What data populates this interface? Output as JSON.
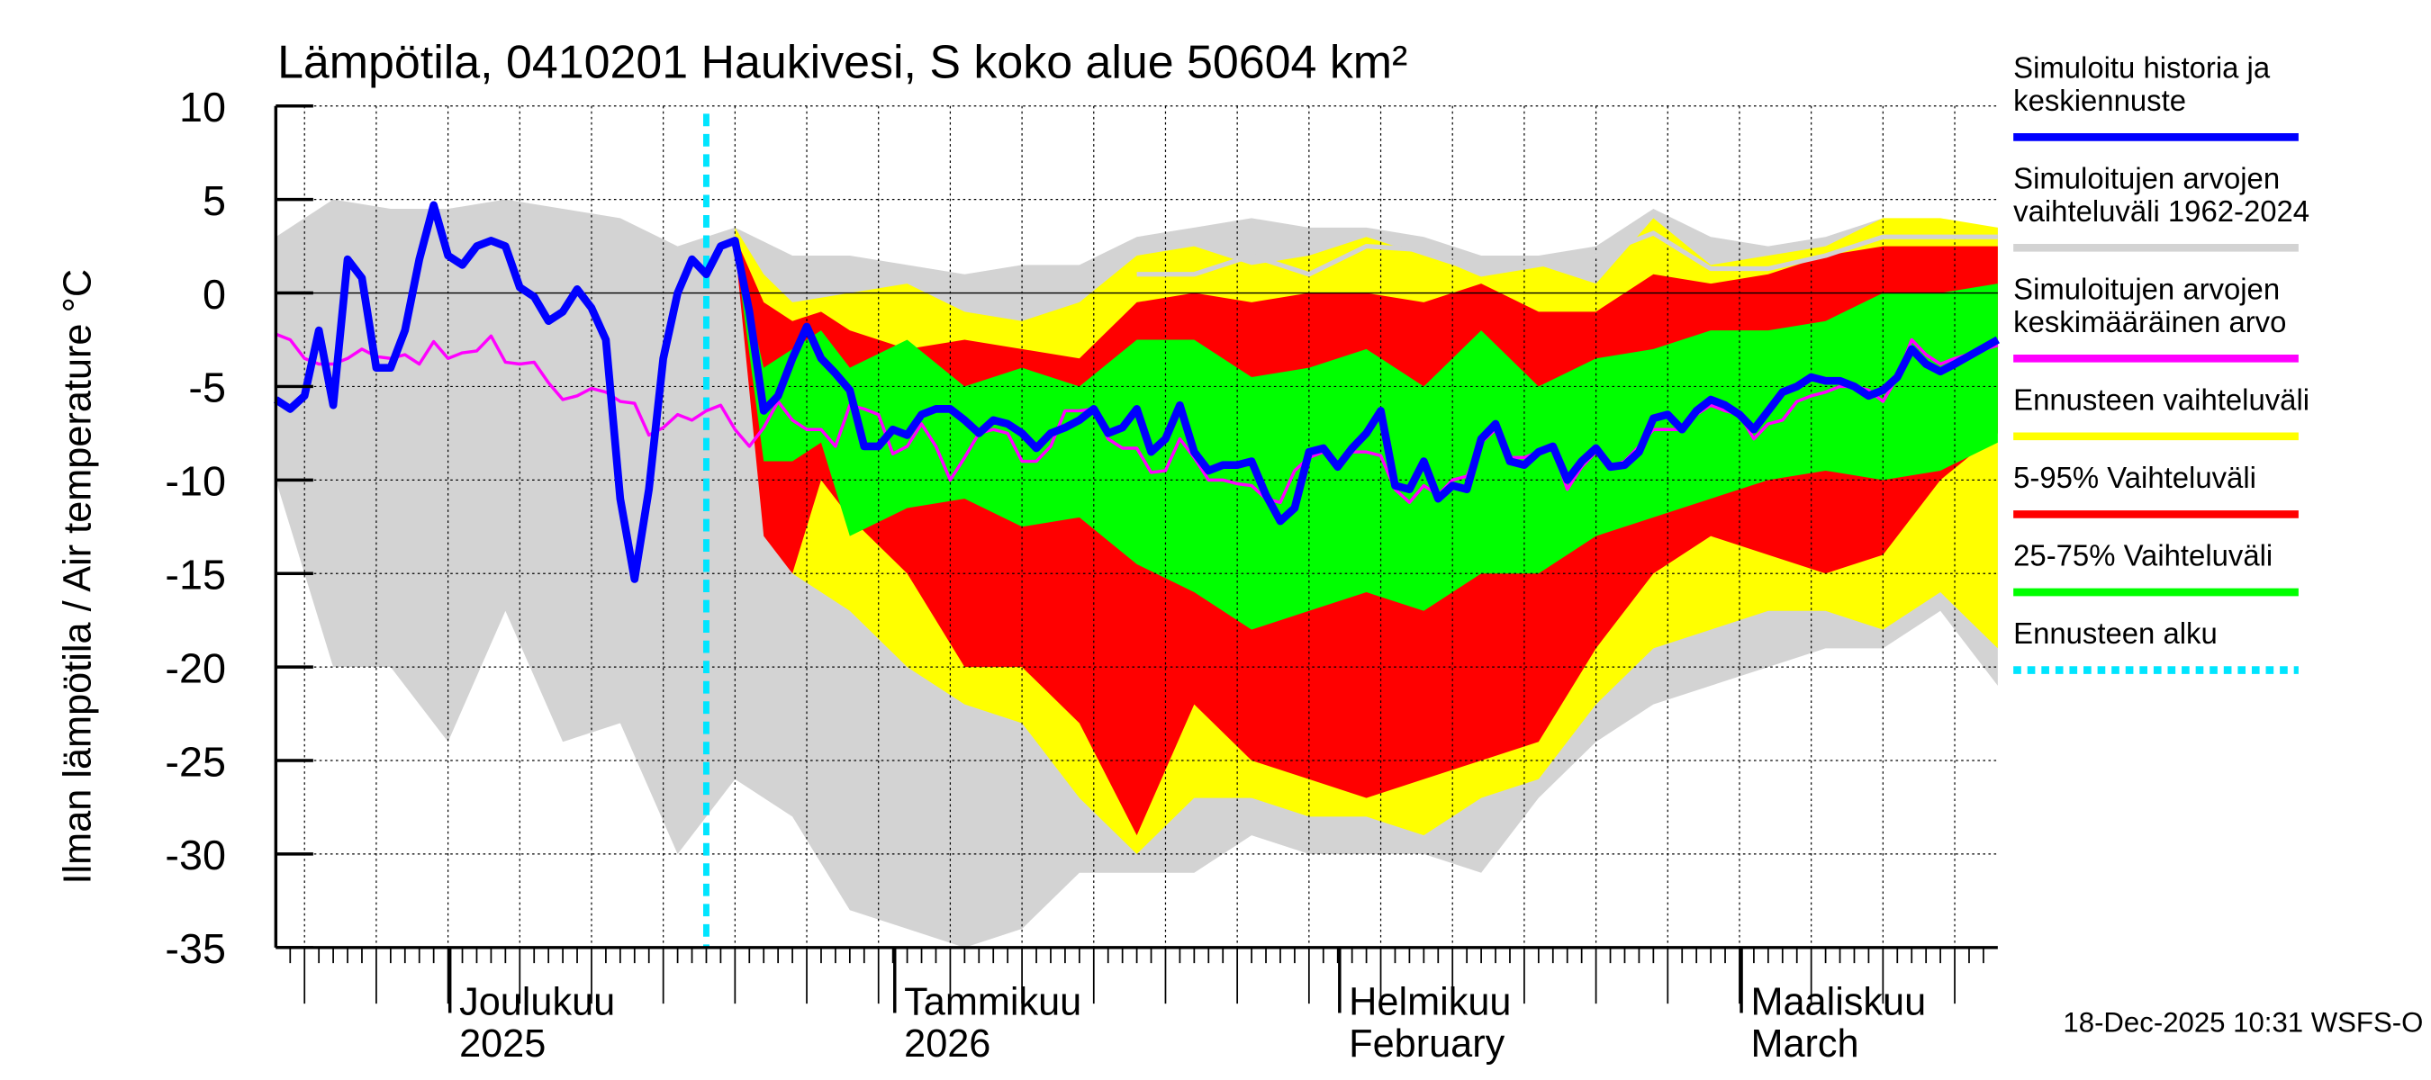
{
  "chart_data": {
    "type": "area",
    "title": "Lämpötila, 0410201 Haukivesi, S koko alue 50604 km²",
    "ylabel": "Ilman lämpötila / Air temperature   °C",
    "ylim": [
      -35,
      10
    ],
    "yticks": [
      10,
      5,
      0,
      -5,
      -10,
      -15,
      -20,
      -25,
      -30,
      -35
    ],
    "ytick_labels": [
      "10",
      "5",
      "0",
      "-5",
      "-10",
      "-15",
      "-20",
      "-25",
      "-30",
      "-35"
    ],
    "x_unit": "days since 18-Nov-2025",
    "xlim": [
      0,
      120
    ],
    "forecast_start_day": 30,
    "month_labels": [
      {
        "day": 13,
        "line1": "Joulukuu",
        "line2": "2025"
      },
      {
        "day": 44,
        "line1": "Tammikuu",
        "line2": "2026"
      },
      {
        "day": 75,
        "line1": "Helmikuu",
        "line2": "February"
      },
      {
        "day": 103,
        "line1": "Maaliskuu",
        "line2": "March"
      }
    ],
    "timestamp": "18-Dec-2025 10:31 WSFS-O",
    "legend": [
      {
        "label1": "Simuloitu historia ja",
        "label2": "keskiennuste",
        "color": "#0000ff",
        "style": "solid"
      },
      {
        "label1": "Simuloitujen arvojen",
        "label2": "vaihteluväli 1962-2024",
        "color": "#d3d3d3",
        "style": "solid"
      },
      {
        "label1": "Simuloitujen arvojen",
        "label2": "keskimääräinen arvo",
        "color": "#ff00ff",
        "style": "solid"
      },
      {
        "label1": "Ennusteen vaihteluväli",
        "label2": "",
        "color": "#ffff00",
        "style": "solid"
      },
      {
        "label1": "5-95% Vaihteluväli",
        "label2": "",
        "color": "#ff0000",
        "style": "solid"
      },
      {
        "label1": "25-75% Vaihteluväli",
        "label2": "",
        "color": "#00ff00",
        "style": "solid"
      },
      {
        "label1": "Ennusteen alku",
        "label2": "",
        "color": "#00e5ff",
        "style": "dashed"
      }
    ],
    "bands": [
      {
        "name": "Simuloitujen arvojen vaihteluväli 1962-2024",
        "color": "#d3d3d3",
        "x": [
          0,
          4,
          8,
          12,
          16,
          20,
          24,
          28,
          32,
          36,
          40,
          44,
          48,
          52,
          56,
          60,
          64,
          68,
          72,
          76,
          80,
          84,
          88,
          92,
          96,
          100,
          104,
          108,
          112,
          116,
          120
        ],
        "upper": [
          3,
          5,
          4.5,
          4.5,
          5,
          4.5,
          4,
          2.5,
          3.5,
          2,
          2,
          1.5,
          1,
          1.5,
          1.5,
          3,
          3.5,
          4,
          3.5,
          3.5,
          3,
          2,
          2,
          2.5,
          4.5,
          3,
          2.5,
          3,
          4,
          3.5,
          3.5
        ],
        "lower": [
          -10,
          -20,
          -20,
          -24,
          -17,
          -24,
          -23,
          -30,
          -26,
          -28,
          -33,
          -34,
          -35,
          -34,
          -31,
          -31,
          -31,
          -29,
          -30,
          -30,
          -30,
          -31,
          -27,
          -24,
          -22,
          -21,
          -20,
          -19,
          -19,
          -17,
          -21
        ]
      },
      {
        "name": "Ennusteen vaihteluväli",
        "color": "#ffff00",
        "x": [
          32,
          34,
          36,
          40,
          44,
          48,
          52,
          56,
          60,
          64,
          68,
          72,
          76,
          80,
          84,
          88,
          92,
          96,
          100,
          104,
          108,
          112,
          116,
          120
        ],
        "upper": [
          3.5,
          1,
          -0.5,
          0,
          0.5,
          -1,
          -1.5,
          -0.5,
          2,
          2.5,
          1.5,
          2,
          3,
          2,
          1,
          1.5,
          0.5,
          4,
          1.5,
          2,
          2.5,
          4,
          4,
          3.5
        ],
        "lower": [
          2.5,
          -12,
          -15,
          -17,
          -20,
          -22,
          -23,
          -27,
          -30,
          -27,
          -27,
          -28,
          -28,
          -29,
          -27,
          -26,
          -22,
          -19,
          -18,
          -17,
          -17,
          -18,
          -16,
          -19
        ]
      },
      {
        "name": "5-95% Vaihteluväli",
        "color": "#ff0000",
        "x": [
          32,
          34,
          36,
          38,
          40,
          44,
          48,
          52,
          56,
          60,
          64,
          68,
          72,
          76,
          80,
          84,
          88,
          92,
          96,
          100,
          104,
          108,
          112,
          116,
          120
        ],
        "upper": [
          3,
          -0.5,
          -1.5,
          -1,
          -2,
          -3,
          -2.5,
          -3,
          -3.5,
          -0.5,
          0,
          -0.5,
          0,
          0,
          -0.5,
          0.5,
          -1,
          -1,
          1,
          0.5,
          1,
          2,
          2.5,
          2.5,
          2.5
        ],
        "lower": [
          2.5,
          -13,
          -15,
          -10,
          -12,
          -15,
          -20,
          -20,
          -23,
          -29,
          -22,
          -25,
          -26,
          -27,
          -26,
          -25,
          -24,
          -19,
          -15,
          -13,
          -14,
          -15,
          -14,
          -10,
          -7.5
        ]
      },
      {
        "name": "25-75% Vaihteluväli",
        "color": "#00ff00",
        "x": [
          32,
          34,
          36,
          38,
          40,
          44,
          48,
          52,
          56,
          60,
          64,
          68,
          72,
          76,
          80,
          84,
          88,
          92,
          96,
          100,
          104,
          108,
          112,
          116,
          120
        ],
        "upper": [
          2.5,
          -4,
          -3,
          -2,
          -4,
          -2.5,
          -5,
          -4,
          -5,
          -2.5,
          -2.5,
          -4.5,
          -4,
          -3,
          -5,
          -2,
          -5,
          -3.5,
          -3,
          -2,
          -2,
          -1.5,
          0,
          0,
          0.5
        ],
        "lower": [
          2.5,
          -9,
          -9,
          -8,
          -13,
          -11.5,
          -11,
          -12.5,
          -12,
          -14.5,
          -16,
          -18,
          -17,
          -16,
          -17,
          -15,
          -15,
          -13,
          -12,
          -11,
          -10,
          -9.5,
          -10,
          -9.5,
          -8
        ]
      }
    ],
    "series": [
      {
        "name": "Simuloitujen arvojen vaihteluväli (gray line)",
        "color": "#d3d3d3",
        "x": [
          60,
          64,
          68,
          72,
          76,
          80,
          84,
          88,
          92,
          96,
          100,
          104,
          108,
          112,
          116,
          120
        ],
        "y": [
          1,
          1,
          2,
          1,
          2.5,
          2.3,
          1,
          1.5,
          2,
          3.2,
          1.3,
          1.3,
          2,
          3,
          3,
          3
        ]
      },
      {
        "name": "Simuloitujen arvojen keskimääräinen arvo",
        "color": "#ff00ff",
        "x": [
          0,
          1,
          2,
          3,
          4,
          5,
          6,
          7,
          8,
          9,
          10,
          11,
          12,
          13,
          14,
          15,
          16,
          17,
          18,
          19,
          20,
          21,
          22,
          23,
          24,
          25,
          26,
          27,
          28,
          29,
          30,
          31,
          32,
          33,
          34,
          35,
          36,
          37,
          38,
          39,
          40,
          41,
          42,
          43,
          44,
          45,
          46,
          47,
          48,
          49,
          50,
          51,
          52,
          53,
          54,
          55,
          56,
          57,
          58,
          59,
          60,
          61,
          62,
          63,
          64,
          65,
          66,
          67,
          68,
          69,
          70,
          71,
          72,
          73,
          74,
          75,
          76,
          77,
          78,
          79,
          80,
          81,
          82,
          83,
          84,
          85,
          86,
          87,
          88,
          89,
          90,
          91,
          92,
          93,
          94,
          95,
          96,
          97,
          98,
          99,
          100,
          101,
          102,
          103,
          104,
          105,
          106,
          107,
          108,
          109,
          110,
          111,
          112,
          113,
          114,
          115,
          116,
          117,
          120
        ],
        "y": [
          -2.2,
          -2.5,
          -3.5,
          -3.8,
          -3.8,
          -3.5,
          -3,
          -3.4,
          -3.5,
          -3.3,
          -3.8,
          -2.6,
          -3.5,
          -3.2,
          -3.1,
          -2.3,
          -3.7,
          -3.8,
          -3.7,
          -4.8,
          -5.7,
          -5.5,
          -5.1,
          -5.3,
          -5.8,
          -5.9,
          -7.6,
          -7.2,
          -6.5,
          -6.8,
          -6.3,
          -6,
          -7.3,
          -8.2,
          -7.2,
          -5.8,
          -6.8,
          -7.3,
          -7.3,
          -8.2,
          -6,
          -6.2,
          -6.5,
          -8.6,
          -8.2,
          -7,
          -8.2,
          -10,
          -8.8,
          -7.5,
          -7.3,
          -7.5,
          -9,
          -9,
          -8.2,
          -6.3,
          -6.3,
          -6.2,
          -7.8,
          -8.3,
          -8.3,
          -9.6,
          -9.5,
          -7.8,
          -8.8,
          -10,
          -10,
          -10.2,
          -10.3,
          -11,
          -11.2,
          -9.5,
          -8.8,
          -8.5,
          -9.2,
          -8.5,
          -8.5,
          -8.7,
          -10.5,
          -11.2,
          -10.3,
          -10.8,
          -10,
          -9.8,
          -8,
          -7.3,
          -8.8,
          -8.8,
          -8.5,
          -8.3,
          -10.5,
          -9.3,
          -8.5,
          -9.3,
          -9,
          -8.2,
          -7.3,
          -7.3,
          -7.3,
          -6.5,
          -6,
          -6.3,
          -6.5,
          -7.8,
          -7,
          -6.8,
          -5.8,
          -5.5,
          -5.3,
          -5,
          -5,
          -5.2,
          -5.8,
          -4.5,
          -2.5,
          -3.3,
          -3.8,
          -3.5,
          -2.8
        ]
      },
      {
        "name": "Simuloitu historia ja keskiennuste",
        "color": "#0000ff",
        "x": [
          0,
          1,
          2,
          3,
          4,
          5,
          6,
          7,
          8,
          9,
          10,
          11,
          12,
          13,
          14,
          15,
          16,
          17,
          18,
          19,
          20,
          21,
          22,
          23,
          24,
          25,
          26,
          27,
          28,
          29,
          30,
          31,
          32,
          33,
          34,
          35,
          36,
          37,
          38,
          39,
          40,
          41,
          42,
          43,
          44,
          45,
          46,
          47,
          48,
          49,
          50,
          51,
          52,
          53,
          54,
          55,
          56,
          57,
          58,
          59,
          60,
          61,
          62,
          63,
          64,
          65,
          66,
          67,
          68,
          69,
          70,
          71,
          72,
          73,
          74,
          75,
          76,
          77,
          78,
          79,
          80,
          81,
          82,
          83,
          84,
          85,
          86,
          87,
          88,
          89,
          90,
          91,
          92,
          93,
          94,
          95,
          96,
          97,
          98,
          99,
          100,
          101,
          102,
          103,
          104,
          105,
          106,
          107,
          108,
          109,
          110,
          111,
          112,
          113,
          114,
          115,
          116,
          117,
          120
        ],
        "y": [
          -5.7,
          -6.2,
          -5.5,
          -2,
          -6,
          1.8,
          0.8,
          -4,
          -4,
          -2,
          1.8,
          4.7,
          2,
          1.5,
          2.5,
          2.8,
          2.5,
          0.3,
          -0.2,
          -1.5,
          -1,
          0.2,
          -0.8,
          -2.5,
          -11,
          -15.3,
          -10.5,
          -3.5,
          0,
          1.8,
          1,
          2.5,
          2.8,
          -1,
          -6.3,
          -5.5,
          -3.5,
          -1.8,
          -3.5,
          -4.3,
          -5.2,
          -8.2,
          -8.2,
          -7.3,
          -7.6,
          -6.5,
          -6.2,
          -6.2,
          -6.8,
          -7.5,
          -6.8,
          -7,
          -7.5,
          -8.3,
          -7.5,
          -7.2,
          -6.8,
          -6.2,
          -7.5,
          -7.2,
          -6.2,
          -8.5,
          -7.8,
          -6,
          -8.5,
          -9.5,
          -9.2,
          -9.2,
          -9,
          -10.8,
          -12.2,
          -11.5,
          -8.5,
          -8.3,
          -9.3,
          -8.3,
          -7.5,
          -6.3,
          -10.3,
          -10.5,
          -9,
          -11,
          -10.3,
          -10.5,
          -7.8,
          -7,
          -9,
          -9.2,
          -8.5,
          -8.2,
          -10,
          -9,
          -8.3,
          -9.3,
          -9.2,
          -8.5,
          -6.7,
          -6.5,
          -7.3,
          -6.3,
          -5.7,
          -6,
          -6.5,
          -7.3,
          -6.3,
          -5.3,
          -5,
          -4.5,
          -4.7,
          -4.7,
          -5,
          -5.5,
          -5.2,
          -4.5,
          -3,
          -3.8,
          -4.2,
          -3.8,
          -2.5
        ]
      }
    ]
  }
}
